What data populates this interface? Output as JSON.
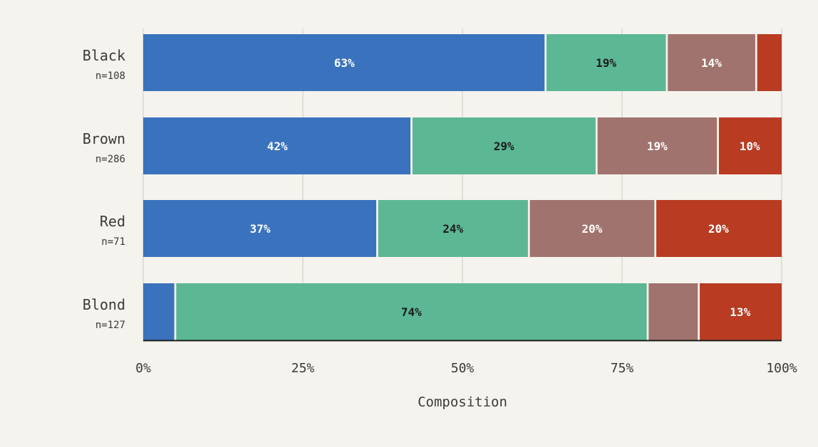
{
  "chart_data": {
    "type": "bar",
    "orientation": "horizontal",
    "stacked": "percent",
    "categories": [
      "Black",
      "Brown",
      "Red",
      "Blond"
    ],
    "category_notes": [
      "n=108",
      "n=286",
      "n=71",
      "n=127"
    ],
    "series": [
      {
        "color": "#3a72bd",
        "label_color": "#ffffff",
        "values": [
          63,
          42,
          37,
          5
        ]
      },
      {
        "color": "#5cb794",
        "label_color": "#1c1c1c",
        "values": [
          19,
          29,
          24,
          74
        ]
      },
      {
        "color": "#a0736e",
        "label_color": "#ffffff",
        "values": [
          14,
          19,
          20,
          8
        ]
      },
      {
        "color": "#b83b22",
        "label_color": "#ffffff",
        "values": [
          4,
          10,
          20,
          13
        ]
      }
    ],
    "value_labels": [
      [
        "63%",
        "19%",
        "14%",
        ""
      ],
      [
        "42%",
        "29%",
        "19%",
        "10%"
      ],
      [
        "37%",
        "24%",
        "20%",
        "20%"
      ],
      [
        "",
        "74%",
        "",
        "13%"
      ]
    ],
    "xlim": [
      0,
      100
    ],
    "xticks": [
      0,
      25,
      50,
      75,
      100
    ],
    "xtick_labels": [
      "0%",
      "25%",
      "50%",
      "75%",
      "100%"
    ],
    "xlabel": "Composition",
    "ylabel": "",
    "title": "",
    "grid": "vertical",
    "legend": "none"
  }
}
